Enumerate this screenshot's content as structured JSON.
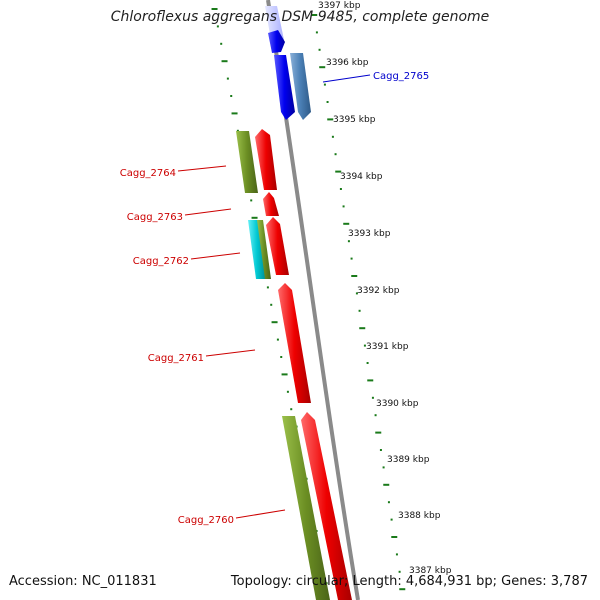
{
  "title": "Chloroflexus aggregans DSM 9485, complete genome",
  "footer": {
    "accession": "Accession: NC_011831",
    "topology": "Topology: circular; Length: 4,684,931 bp; Genes: 3,787"
  },
  "colors": {
    "backbone": "#8a8a8a",
    "tick": "#1a7a1a",
    "locus_label_forward": "#0000cc",
    "locus_label_reverse": "#cc0000",
    "kbp_text": "#111111",
    "feature_blue": "#0000ee",
    "feature_steelblue": "#4a7fb5",
    "feature_lightblue": "#c8ccff",
    "feature_red": "#ee0000",
    "feature_olive": "#6b8e23",
    "feature_cyan": "#00c8d2"
  },
  "kbp_labels": [
    "3397 kbp",
    "3396 kbp",
    "3395 kbp",
    "3394 kbp",
    "3393 kbp",
    "3392 kbp",
    "3391 kbp",
    "3390 kbp",
    "3389 kbp",
    "3388 kbp",
    "3387 kbp"
  ],
  "locus_labels": [
    {
      "text": "Cagg_2765",
      "strand": "forward"
    },
    {
      "text": "Cagg_2764",
      "strand": "reverse"
    },
    {
      "text": "Cagg_2763",
      "strand": "reverse"
    },
    {
      "text": "Cagg_2762",
      "strand": "reverse"
    },
    {
      "text": "Cagg_2761",
      "strand": "reverse"
    },
    {
      "text": "Cagg_2760",
      "strand": "reverse"
    }
  ]
}
